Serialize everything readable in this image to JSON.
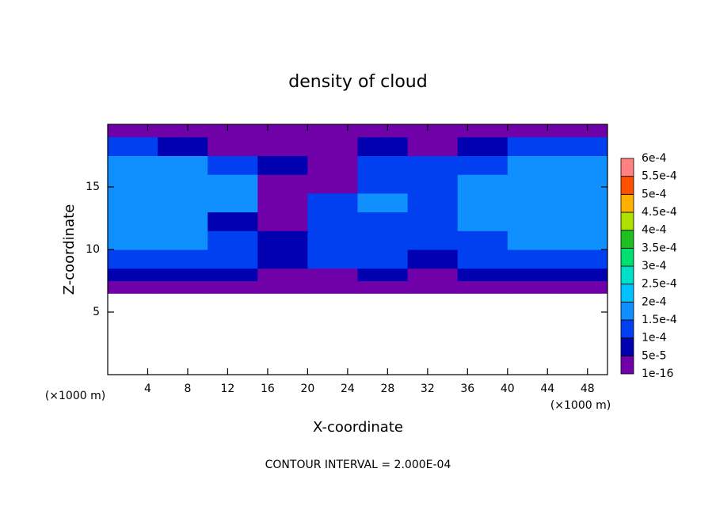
{
  "chart_data": {
    "type": "contour",
    "title": "density of cloud",
    "x_label": "X-coordinate",
    "y_label": "Z-coordinate",
    "x_unit": "(×1000 m)",
    "y_unit": "(×1000 m)",
    "footer": "CONTOUR INTERVAL = 2.000E-04",
    "xlim": [
      0,
      50
    ],
    "ylim": [
      0,
      20
    ],
    "xticks": [
      4,
      8,
      12,
      16,
      20,
      24,
      28,
      32,
      36,
      40,
      44,
      48
    ],
    "yticks": [
      5,
      10,
      15
    ],
    "field": {
      "x_edges": [
        0,
        5,
        10,
        15,
        20,
        25,
        30,
        35,
        40,
        45,
        50
      ],
      "z_edges": [
        6.5,
        7.5,
        8.5,
        10,
        11.5,
        13,
        14.5,
        16,
        17.5,
        19,
        20
      ],
      "values": [
        [
          3e-05,
          3e-05,
          3e-05,
          3e-05,
          3e-05,
          3e-05,
          3e-05,
          3e-05,
          3e-05,
          3e-05
        ],
        [
          7e-05,
          7e-05,
          7e-05,
          3e-05,
          3e-05,
          7e-05,
          3e-05,
          7e-05,
          7e-05,
          7e-05
        ],
        [
          0.00012,
          0.00012,
          0.00012,
          7e-05,
          0.00012,
          0.00012,
          7e-05,
          0.00012,
          0.00012,
          0.00012
        ],
        [
          0.00016,
          0.00016,
          0.00012,
          7e-05,
          0.00012,
          0.00012,
          0.00012,
          0.00012,
          0.00016,
          0.00016
        ],
        [
          0.00017,
          0.00017,
          7e-05,
          3e-05,
          0.00012,
          0.00012,
          0.00012,
          0.00017,
          0.00017,
          0.00017
        ],
        [
          0.00017,
          0.00017,
          0.00016,
          3e-05,
          0.00012,
          0.00016,
          0.00012,
          0.00017,
          0.00017,
          0.00017
        ],
        [
          0.00017,
          0.00017,
          0.00016,
          3e-05,
          3e-05,
          0.00012,
          0.00012,
          0.00016,
          0.00017,
          0.00017
        ],
        [
          0.00016,
          0.00016,
          0.00012,
          7e-05,
          3e-05,
          0.00012,
          0.00012,
          0.00012,
          0.00016,
          0.00016
        ],
        [
          0.00012,
          7e-05,
          3e-05,
          3e-05,
          3e-05,
          7e-05,
          3e-05,
          7e-05,
          0.00012,
          0.00012
        ],
        [
          3e-05,
          3e-05,
          3e-05,
          3e-05,
          3e-05,
          3e-05,
          3e-05,
          3e-05,
          3e-05,
          3e-05
        ]
      ]
    },
    "colorbar": {
      "ticks": [
        1e-16,
        {
          "value": 5e-05,
          "label": "5e-5"
        },
        {
          "value": 0.0001,
          "label": "1e-4"
        },
        {
          "value": 0.00015,
          "label": "1.5e-4"
        },
        {
          "value": 0.0002,
          "label": "2e-4"
        },
        {
          "value": 0.00025,
          "label": "2.5e-4"
        },
        {
          "value": 0.0003,
          "label": "3e-4"
        },
        {
          "value": 0.00035,
          "label": "3.5e-4"
        },
        {
          "value": 0.0004,
          "label": "4e-4"
        },
        {
          "value": 0.00045,
          "label": "4.5e-4"
        },
        {
          "value": 0.0005,
          "label": "5e-4"
        },
        {
          "value": 0.00055,
          "label": "5.5e-4"
        },
        {
          "value": 0.0006,
          "label": "6e-4"
        }
      ],
      "colors": [
        "#7000a8",
        "#0000b0",
        "#0040f0",
        "#1090ff",
        "#00c0ff",
        "#00e0c8",
        "#00e070",
        "#20c020",
        "#b0e000",
        "#ffb000",
        "#ff5000",
        "#ff8080"
      ]
    }
  }
}
